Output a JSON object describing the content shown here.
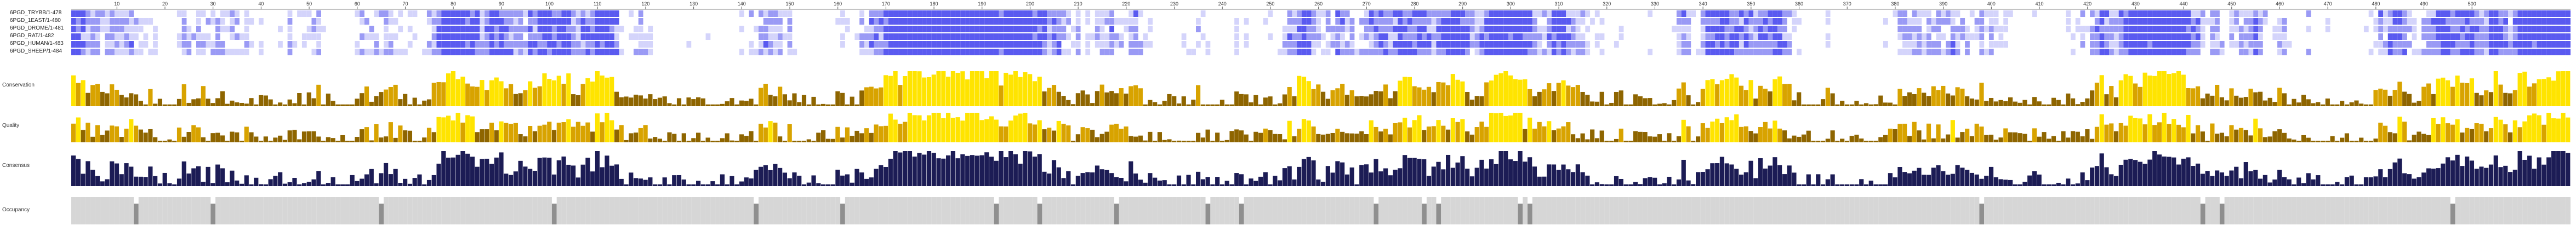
{
  "sequences": [
    {
      "name": "6PGD_TRYBB/1-478"
    },
    {
      "name": "6PGD_1EAST/1-480"
    },
    {
      "name": "6PGD_DROME/1-481"
    },
    {
      "name": "6PGD_RAT/1-482"
    },
    {
      "name": "6PGD_HUMAN/1-483"
    },
    {
      "name": "6PGD_SHEEP/1-484"
    }
  ],
  "ruler": {
    "ticks": [
      "10",
      "20",
      "30",
      "40",
      "50",
      "60",
      "70",
      "80",
      "90",
      "100",
      "110",
      "120",
      "130",
      "140",
      "150",
      "160",
      "170",
      "180",
      "190",
      "200",
      "210",
      "220",
      "230",
      "240",
      "250",
      "260",
      "270",
      "280",
      "290",
      "300",
      "310",
      "320",
      "330",
      "340",
      "350",
      "360",
      "370",
      "380",
      "390",
      "400",
      "410",
      "420",
      "430",
      "440",
      "450",
      "460",
      "470",
      "480",
      "490",
      "500"
    ]
  },
  "annotations": {
    "conservation_label": "Conservation",
    "quality_label": "Quality",
    "consensus_label": "Consensus",
    "occupancy_label": "Occupancy"
  },
  "colors": {
    "high_identity": "#5a5af0",
    "mid_identity": "#9a9af5",
    "low_identity": "#d4d4fb",
    "conservation_high": "#ffe400",
    "conservation_mid": "#d8a300",
    "conservation_low": "#8e6500",
    "consensus_bar": "#1c1c55",
    "occupancy_bar": "#d6d6d6",
    "occupancy_dark": "#8f8f8f"
  }
}
